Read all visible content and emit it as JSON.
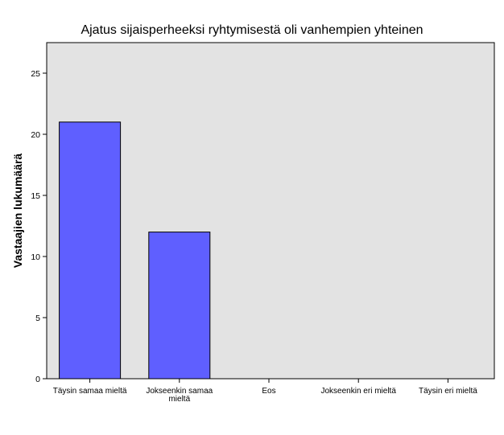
{
  "chart_data": {
    "type": "bar",
    "title": "Ajatus sijaisperheeksi ryhtymisestä oli vanhempien yhteinen",
    "xlabel": "",
    "ylabel": "Vastaajien lukumäärä",
    "categories": [
      [
        "Täysin samaa mieltä"
      ],
      [
        "Jokseenkin samaa",
        "mieltä"
      ],
      [
        "Eos"
      ],
      [
        "Jokseenkin eri mieltä"
      ],
      [
        "Täysin eri mieltä"
      ]
    ],
    "values": [
      21,
      12,
      0,
      0,
      0
    ],
    "yticks": [
      "0",
      "5",
      "10",
      "15",
      "20",
      "25"
    ],
    "ylim": [
      0,
      27.5
    ],
    "colors": {
      "bar": "#5f5fff",
      "plot_bg": "#e3e3e3",
      "bar_stroke": "#000000"
    },
    "grid": false,
    "legend": "none"
  }
}
